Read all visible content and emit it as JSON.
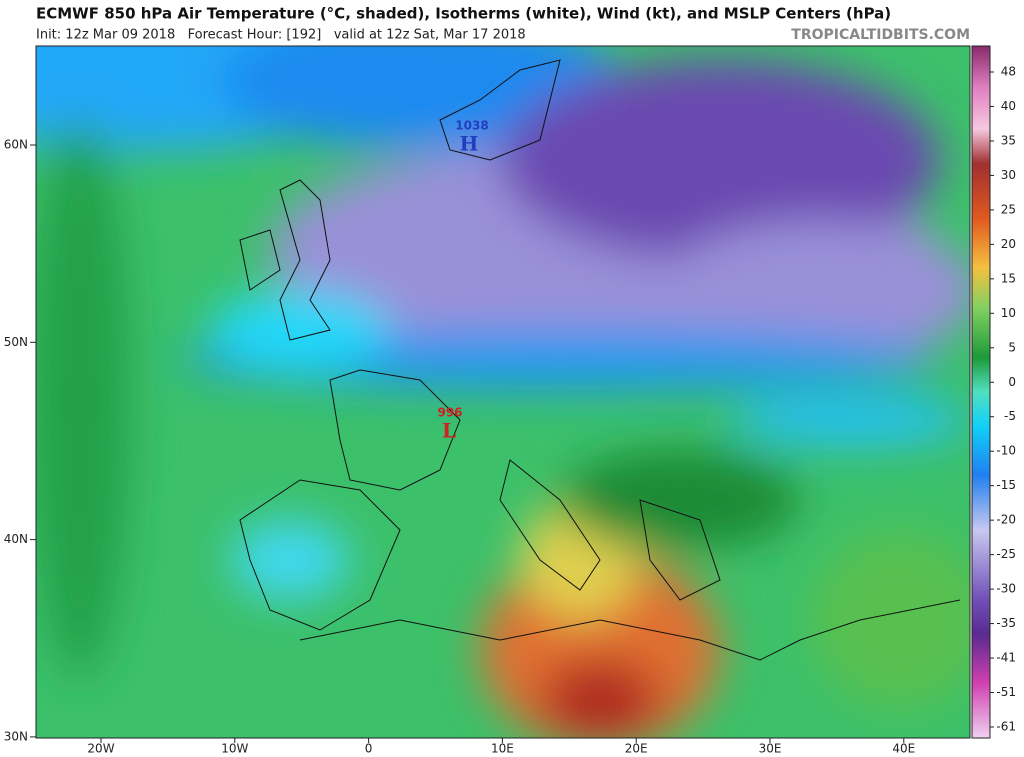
{
  "header": {
    "title": "ECMWF 850 hPa Air Temperature (°C, shaded), Isotherms (white), Wind (kt), and MSLP Centers (hPa)",
    "subtitle": "Init: 12z Mar 09 2018   Forecast Hour: [192]   valid at 12z Sat, Mar 17 2018",
    "brand": "TROPICALTIDBITS.COM"
  },
  "map": {
    "lat_labels": [
      "60N",
      "50N",
      "40N",
      "30N"
    ],
    "lon_labels": [
      "20W",
      "10W",
      "0",
      "10E",
      "20E",
      "30E",
      "40E"
    ],
    "centers": [
      {
        "pressure": "1038",
        "symbol": "H"
      },
      {
        "pressure": "996",
        "symbol": "L"
      }
    ]
  },
  "colorbar": {
    "labels": [
      "48",
      "40",
      "35",
      "30",
      "25",
      "20",
      "15",
      "10",
      "5",
      "0",
      "-5",
      "-10",
      "-15",
      "-20",
      "-25",
      "-30",
      "-35",
      "-41",
      "-51",
      "-61"
    ]
  }
}
